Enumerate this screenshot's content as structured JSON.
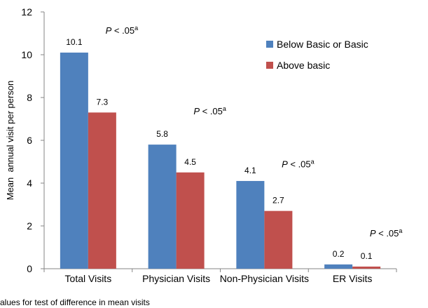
{
  "chart_data": {
    "type": "bar",
    "categories": [
      "Total Visits",
      "Physician Visits",
      "Non-Physician Visits",
      "ER Visits"
    ],
    "series": [
      {
        "name": "Below Basic or Basic",
        "values": [
          10.1,
          5.8,
          4.1,
          0.2
        ],
        "color": "#4f81bd"
      },
      {
        "name": "Above basic",
        "values": [
          7.3,
          4.5,
          2.7,
          0.1
        ],
        "color": "#c0504d"
      }
    ],
    "value_labels": [
      [
        "10.1",
        "5.8",
        "4.1",
        "0.2"
      ],
      [
        "7.3",
        "4.5",
        "2.7",
        "0.1"
      ]
    ],
    "annotation": {
      "italic": "P",
      "text": " < .05",
      "superscript": "a"
    },
    "ylabel": "Mean  annual visit per person",
    "xlabel": "",
    "ylim": [
      0,
      12
    ],
    "yticks": [
      "0",
      "2",
      "4",
      "6",
      "8",
      "10",
      "12"
    ],
    "grid": false,
    "legend_position": "top-right"
  },
  "footnote": "alues for test of  difference in mean visits"
}
